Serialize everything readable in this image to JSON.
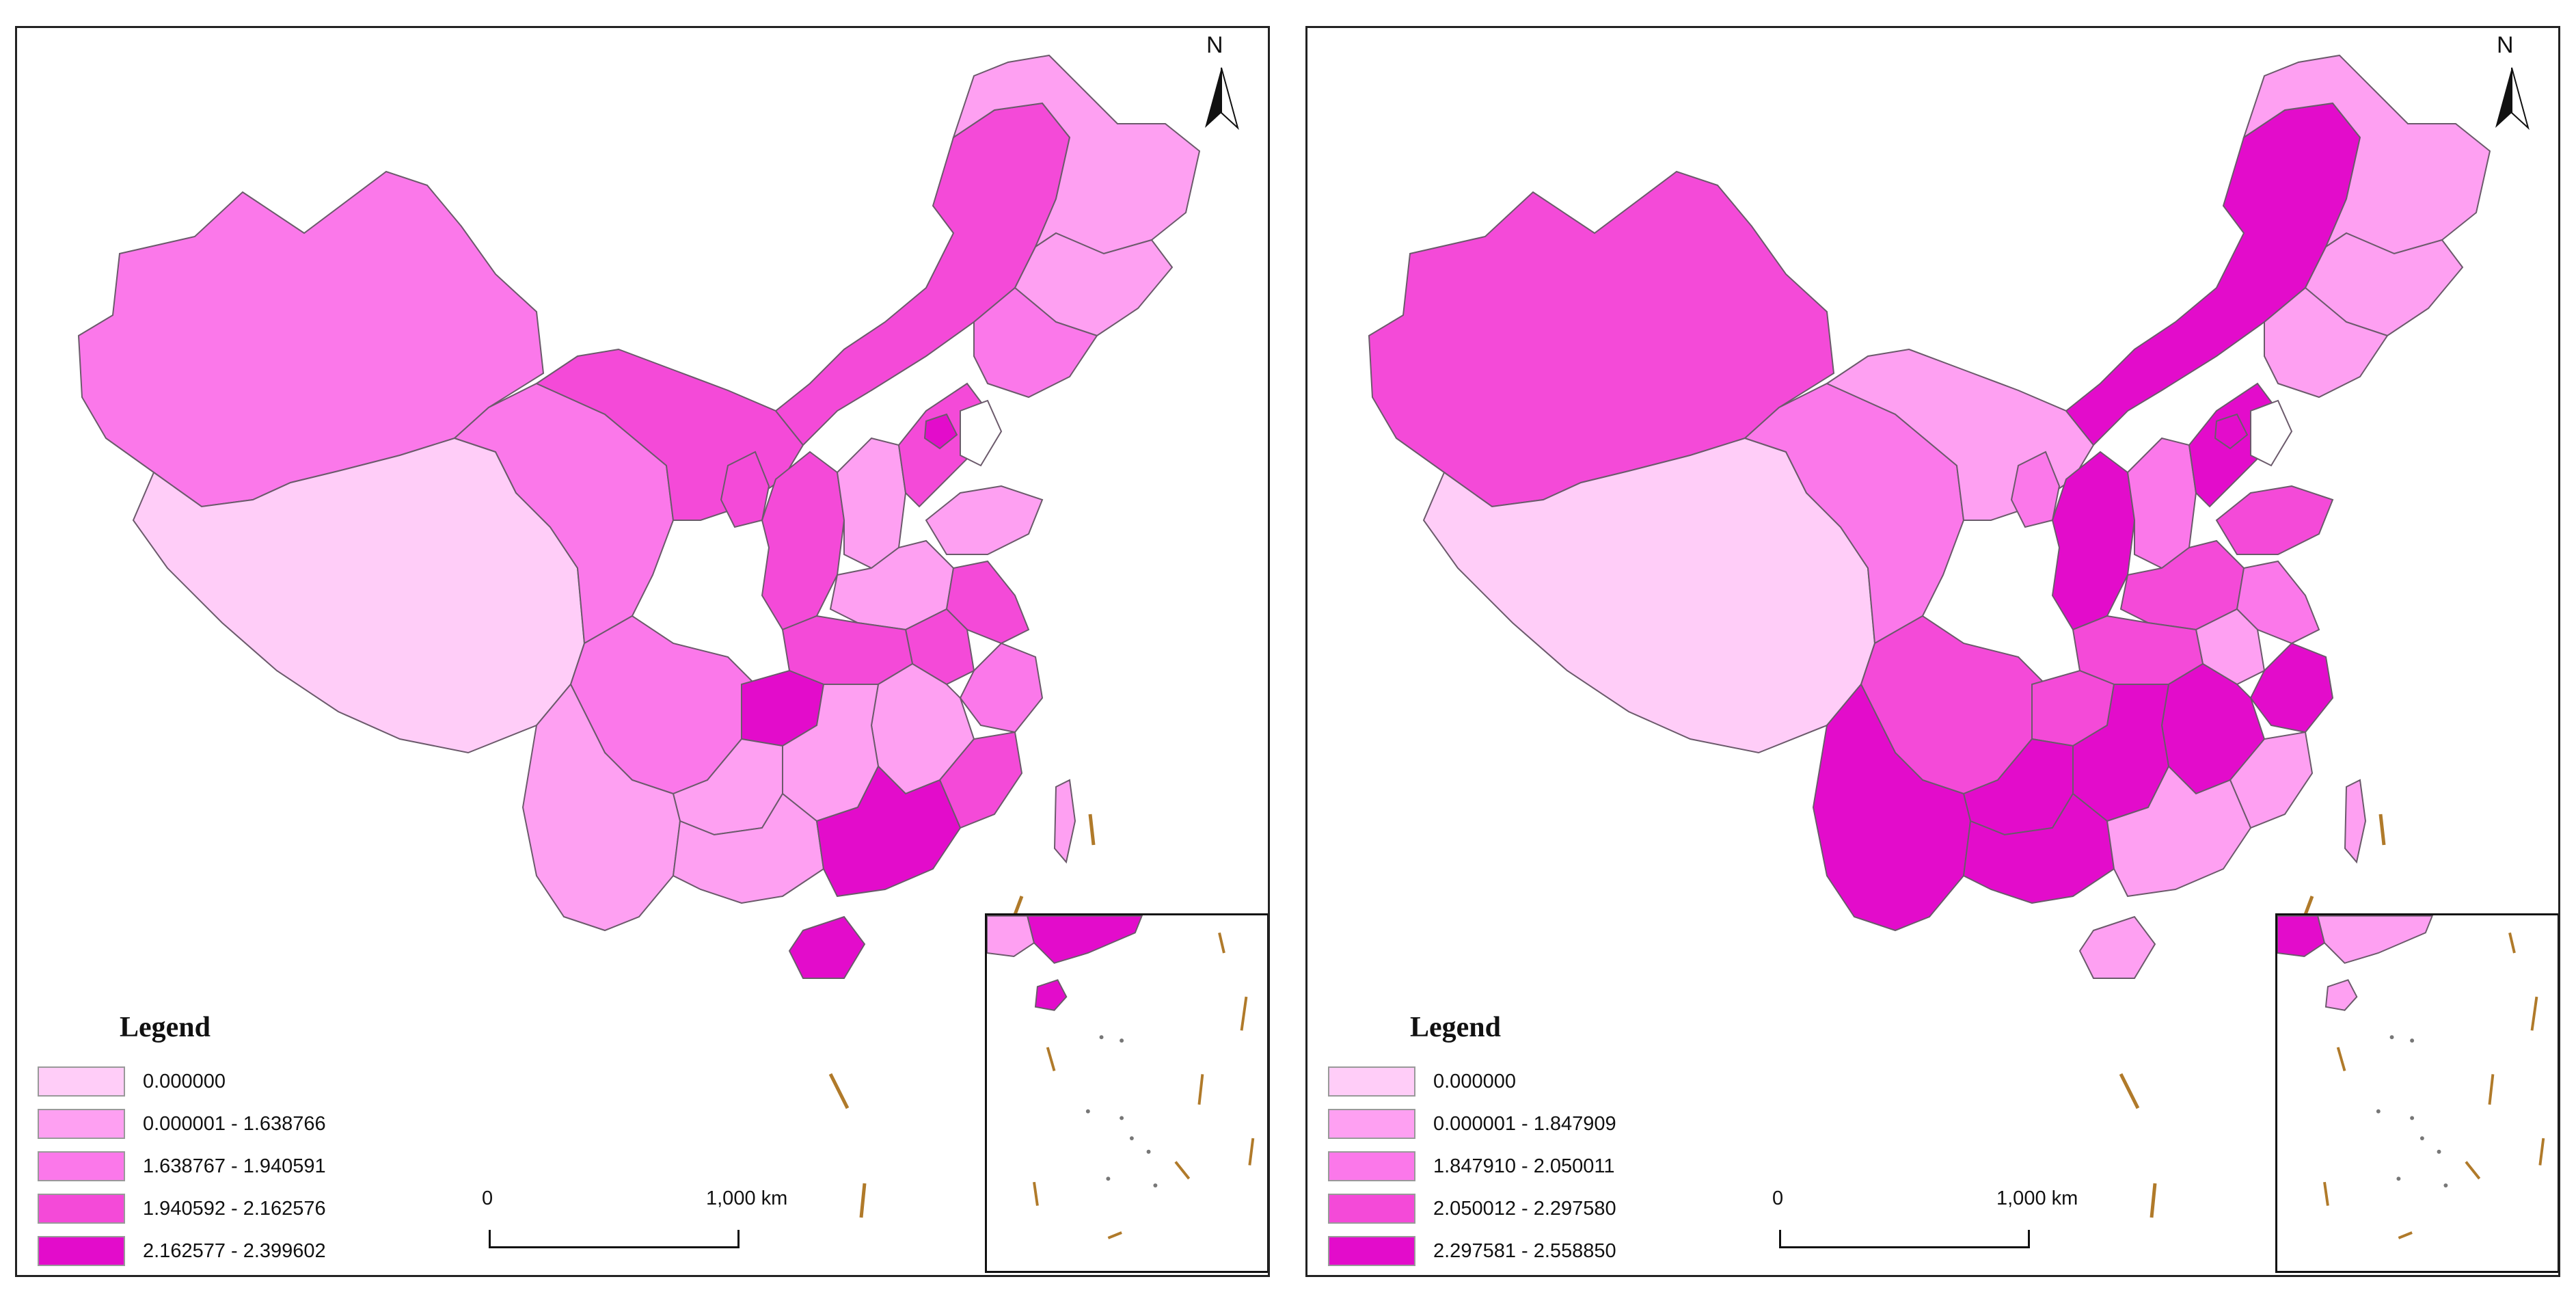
{
  "maps": [
    {
      "north_label": "N",
      "legend": {
        "title": "Legend",
        "classes": [
          {
            "label": "0.000000",
            "color": "#ffcdf8"
          },
          {
            "label": "0.000001 - 1.638766",
            "color": "#fea0f2"
          },
          {
            "label": "1.638767 - 1.940591",
            "color": "#fb78ea"
          },
          {
            "label": "1.940592 - 2.162576",
            "color": "#f44ad8"
          },
          {
            "label": "2.162577 - 2.399602",
            "color": "#e30ccb"
          }
        ]
      },
      "scale": {
        "start": "0",
        "end": "1,000 km"
      }
    },
    {
      "north_label": "N",
      "legend": {
        "title": "Legend",
        "classes": [
          {
            "label": "0.000000",
            "color": "#ffcdf8"
          },
          {
            "label": "0.000001 - 1.847909",
            "color": "#fea0f2"
          },
          {
            "label": "1.847910 - 2.050011",
            "color": "#fb78ea"
          },
          {
            "label": "2.050012 - 2.297580",
            "color": "#f44ad8"
          },
          {
            "label": "2.297581 - 2.558850",
            "color": "#e30ccb"
          }
        ]
      },
      "scale": {
        "start": "0",
        "end": "1,000 km"
      }
    }
  ]
}
